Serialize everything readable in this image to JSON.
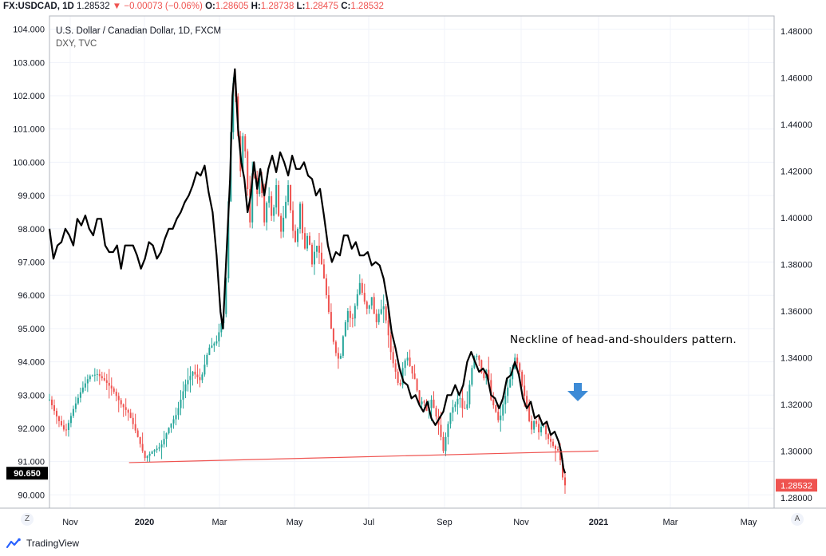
{
  "header": {
    "symbol": "FX:USDCAD, 1D",
    "last": "1.28532",
    "change_arrow": "▼",
    "change": "−0.00073 (−0.06%)",
    "o_label": "O:",
    "o_value": "1.28605",
    "h_label": "H:",
    "h_value": "1.28738",
    "l_label": "L:",
    "l_value": "1.28475",
    "c_label": "C:",
    "c_value": "1.28532",
    "negative_color": "#ef5350"
  },
  "legend": {
    "main_title": "U.S. Dollar / Canadian Dollar, 1D, FXCM",
    "overlay_title": "DXY, TVC"
  },
  "annotation": {
    "text": "Neckline of head-and-shoulders pattern.",
    "arrow_icon": "down-arrow-icon",
    "arrow_color": "#3d8bd6"
  },
  "corner_buttons": {
    "left": "Z",
    "right": "A"
  },
  "branding": {
    "logo_icon": "tradingview-logo-icon",
    "text": "TradingView"
  },
  "chart_data": {
    "type": "candlestick-with-line-overlay",
    "x_ticks": [
      "Nov",
      "2020",
      "Mar",
      "May",
      "Jul",
      "Sep",
      "Nov",
      "2021",
      "Mar",
      "May"
    ],
    "left_axis": {
      "label": "DXY",
      "ticks": [
        "104.000",
        "103.000",
        "102.000",
        "101.000",
        "100.000",
        "99.000",
        "98.000",
        "97.000",
        "96.000",
        "95.000",
        "94.000",
        "93.000",
        "92.000",
        "91.000",
        "90.000"
      ],
      "range": [
        89.6,
        104.4
      ],
      "last_value": "90.650"
    },
    "right_axis": {
      "label": "USDCAD",
      "ticks": [
        "1.48000",
        "1.46000",
        "1.44000",
        "1.42000",
        "1.40000",
        "1.38000",
        "1.36000",
        "1.34000",
        "1.32000",
        "1.30000",
        "1.28000"
      ],
      "range": [
        1.2755,
        1.4865
      ],
      "last_value": "1.28532"
    },
    "colors": {
      "up": "#26a69a",
      "down": "#ef5350",
      "overlay": "#000000",
      "neckline": "#ef5350"
    },
    "usdcad_path": [
      [
        0,
        1.322
      ],
      [
        10,
        1.314
      ],
      [
        20,
        1.308
      ],
      [
        30,
        1.318
      ],
      [
        40,
        1.326
      ],
      [
        50,
        1.332
      ],
      [
        60,
        1.333
      ],
      [
        70,
        1.33
      ],
      [
        80,
        1.326
      ],
      [
        90,
        1.32
      ],
      [
        100,
        1.316
      ],
      [
        110,
        1.307
      ],
      [
        120,
        1.297
      ],
      [
        130,
        1.3
      ],
      [
        140,
        1.302
      ],
      [
        150,
        1.31
      ],
      [
        160,
        1.316
      ],
      [
        170,
        1.328
      ],
      [
        180,
        1.334
      ],
      [
        190,
        1.33
      ],
      [
        200,
        1.344
      ],
      [
        210,
        1.347
      ],
      [
        220,
        1.36
      ],
      [
        223,
        1.381
      ],
      [
        226,
        1.42
      ],
      [
        229,
        1.445
      ],
      [
        232,
        1.464
      ],
      [
        236,
        1.44
      ],
      [
        240,
        1.42
      ],
      [
        244,
        1.44
      ],
      [
        248,
        1.417
      ],
      [
        252,
        1.398
      ],
      [
        256,
        1.426
      ],
      [
        260,
        1.408
      ],
      [
        265,
        1.419
      ],
      [
        270,
        1.398
      ],
      [
        275,
        1.412
      ],
      [
        280,
        1.398
      ],
      [
        285,
        1.414
      ],
      [
        290,
        1.392
      ],
      [
        295,
        1.402
      ],
      [
        300,
        1.414
      ],
      [
        305,
        1.396
      ],
      [
        310,
        1.388
      ],
      [
        315,
        1.406
      ],
      [
        320,
        1.385
      ],
      [
        325,
        1.394
      ],
      [
        330,
        1.38
      ],
      [
        335,
        1.389
      ],
      [
        340,
        1.384
      ],
      [
        345,
        1.374
      ],
      [
        350,
        1.362
      ],
      [
        355,
        1.35
      ],
      [
        360,
        1.342
      ],
      [
        365,
        1.338
      ],
      [
        370,
        1.352
      ],
      [
        375,
        1.36
      ],
      [
        380,
        1.355
      ],
      [
        385,
        1.364
      ],
      [
        390,
        1.372
      ],
      [
        395,
        1.365
      ],
      [
        400,
        1.36
      ],
      [
        405,
        1.366
      ],
      [
        410,
        1.354
      ],
      [
        415,
        1.36
      ],
      [
        420,
        1.362
      ],
      [
        425,
        1.352
      ],
      [
        430,
        1.34
      ],
      [
        435,
        1.334
      ],
      [
        440,
        1.326
      ],
      [
        445,
        1.338
      ],
      [
        450,
        1.34
      ],
      [
        455,
        1.334
      ],
      [
        460,
        1.33
      ],
      [
        465,
        1.32
      ],
      [
        470,
        1.322
      ],
      [
        475,
        1.316
      ],
      [
        480,
        1.322
      ],
      [
        485,
        1.316
      ],
      [
        490,
        1.31
      ],
      [
        495,
        1.3
      ],
      [
        500,
        1.31
      ],
      [
        505,
        1.318
      ],
      [
        510,
        1.32
      ],
      [
        515,
        1.324
      ],
      [
        520,
        1.317
      ],
      [
        525,
        1.32
      ],
      [
        530,
        1.334
      ],
      [
        535,
        1.342
      ],
      [
        540,
        1.339
      ],
      [
        545,
        1.33
      ],
      [
        550,
        1.336
      ],
      [
        555,
        1.322
      ],
      [
        560,
        1.318
      ],
      [
        565,
        1.312
      ],
      [
        570,
        1.32
      ],
      [
        575,
        1.326
      ],
      [
        580,
        1.332
      ],
      [
        585,
        1.34
      ],
      [
        590,
        1.336
      ],
      [
        595,
        1.326
      ],
      [
        600,
        1.32
      ],
      [
        605,
        1.308
      ],
      [
        610,
        1.314
      ],
      [
        615,
        1.308
      ],
      [
        620,
        1.312
      ],
      [
        625,
        1.306
      ],
      [
        630,
        1.304
      ],
      [
        635,
        1.301
      ],
      [
        640,
        1.3
      ],
      [
        643,
        1.294
      ],
      [
        646,
        1.286
      ],
      [
        648,
        1.2853
      ]
    ],
    "dxy_path": [
      [
        0,
        98.0
      ],
      [
        5,
        97.1
      ],
      [
        10,
        97.5
      ],
      [
        15,
        97.6
      ],
      [
        20,
        98.0
      ],
      [
        25,
        97.8
      ],
      [
        30,
        97.5
      ],
      [
        35,
        98.3
      ],
      [
        40,
        98.1
      ],
      [
        45,
        98.4
      ],
      [
        50,
        98.0
      ],
      [
        55,
        97.8
      ],
      [
        60,
        98.3
      ],
      [
        65,
        98.3
      ],
      [
        70,
        97.5
      ],
      [
        75,
        97.3
      ],
      [
        80,
        97.3
      ],
      [
        85,
        97.5
      ],
      [
        90,
        96.8
      ],
      [
        95,
        97.5
      ],
      [
        100,
        97.5
      ],
      [
        105,
        97.5
      ],
      [
        110,
        97.2
      ],
      [
        115,
        96.8
      ],
      [
        120,
        97.1
      ],
      [
        125,
        97.6
      ],
      [
        130,
        97.5
      ],
      [
        135,
        97.1
      ],
      [
        140,
        97.3
      ],
      [
        145,
        97.7
      ],
      [
        150,
        98.0
      ],
      [
        155,
        98.0
      ],
      [
        160,
        98.3
      ],
      [
        165,
        98.5
      ],
      [
        170,
        98.8
      ],
      [
        175,
        99.0
      ],
      [
        180,
        99.3
      ],
      [
        185,
        99.7
      ],
      [
        190,
        99.6
      ],
      [
        195,
        99.9
      ],
      [
        200,
        99.1
      ],
      [
        205,
        98.5
      ],
      [
        210,
        97.2
      ],
      [
        215,
        95.5
      ],
      [
        218,
        95.0
      ],
      [
        221,
        96.5
      ],
      [
        224,
        98.0
      ],
      [
        227,
        99.5
      ],
      [
        230,
        102.0
      ],
      [
        233,
        102.8
      ],
      [
        237,
        101.0
      ],
      [
        241,
        100.0
      ],
      [
        245,
        99.5
      ],
      [
        249,
        98.5
      ],
      [
        253,
        99.0
      ],
      [
        257,
        100.0
      ],
      [
        261,
        99.2
      ],
      [
        265,
        99.8
      ],
      [
        270,
        99.0
      ],
      [
        275,
        99.8
      ],
      [
        280,
        100.2
      ],
      [
        285,
        99.7
      ],
      [
        290,
        100.3
      ],
      [
        295,
        100.0
      ],
      [
        300,
        99.6
      ],
      [
        305,
        100.2
      ],
      [
        310,
        99.8
      ],
      [
        315,
        99.8
      ],
      [
        320,
        100.0
      ],
      [
        325,
        99.6
      ],
      [
        330,
        99.5
      ],
      [
        335,
        99.0
      ],
      [
        340,
        99.2
      ],
      [
        345,
        98.4
      ],
      [
        350,
        97.5
      ],
      [
        355,
        97.0
      ],
      [
        360,
        97.3
      ],
      [
        365,
        97.2
      ],
      [
        370,
        97.8
      ],
      [
        375,
        97.8
      ],
      [
        380,
        97.4
      ],
      [
        385,
        97.6
      ],
      [
        390,
        97.2
      ],
      [
        395,
        97.2
      ],
      [
        400,
        97.3
      ],
      [
        405,
        96.9
      ],
      [
        410,
        97.0
      ],
      [
        415,
        96.9
      ],
      [
        420,
        96.5
      ],
      [
        425,
        95.8
      ],
      [
        430,
        94.9
      ],
      [
        435,
        94.4
      ],
      [
        440,
        93.8
      ],
      [
        445,
        93.4
      ],
      [
        450,
        93.3
      ],
      [
        455,
        92.9
      ],
      [
        460,
        93.0
      ],
      [
        465,
        92.7
      ],
      [
        470,
        92.5
      ],
      [
        475,
        92.8
      ],
      [
        480,
        92.3
      ],
      [
        485,
        92.1
      ],
      [
        490,
        92.3
      ],
      [
        495,
        92.5
      ],
      [
        500,
        93.0
      ],
      [
        505,
        93.0
      ],
      [
        510,
        93.3
      ],
      [
        515,
        93.0
      ],
      [
        520,
        93.3
      ],
      [
        525,
        94.0
      ],
      [
        530,
        94.3
      ],
      [
        535,
        94.0
      ],
      [
        540,
        93.7
      ],
      [
        545,
        93.8
      ],
      [
        550,
        93.6
      ],
      [
        555,
        93.0
      ],
      [
        560,
        92.9
      ],
      [
        565,
        92.6
      ],
      [
        570,
        92.9
      ],
      [
        575,
        93.5
      ],
      [
        580,
        93.6
      ],
      [
        585,
        94.0
      ],
      [
        590,
        93.6
      ],
      [
        595,
        92.9
      ],
      [
        600,
        92.6
      ],
      [
        605,
        92.8
      ],
      [
        610,
        92.3
      ],
      [
        615,
        92.4
      ],
      [
        620,
        92.1
      ],
      [
        625,
        92.2
      ],
      [
        630,
        91.8
      ],
      [
        635,
        91.9
      ],
      [
        640,
        91.6
      ],
      [
        643,
        91.3
      ],
      [
        646,
        90.8
      ],
      [
        648,
        90.65
      ]
    ],
    "neckline": [
      [
        100,
        1.2998
      ],
      [
        690,
        1.3
      ]
    ]
  }
}
